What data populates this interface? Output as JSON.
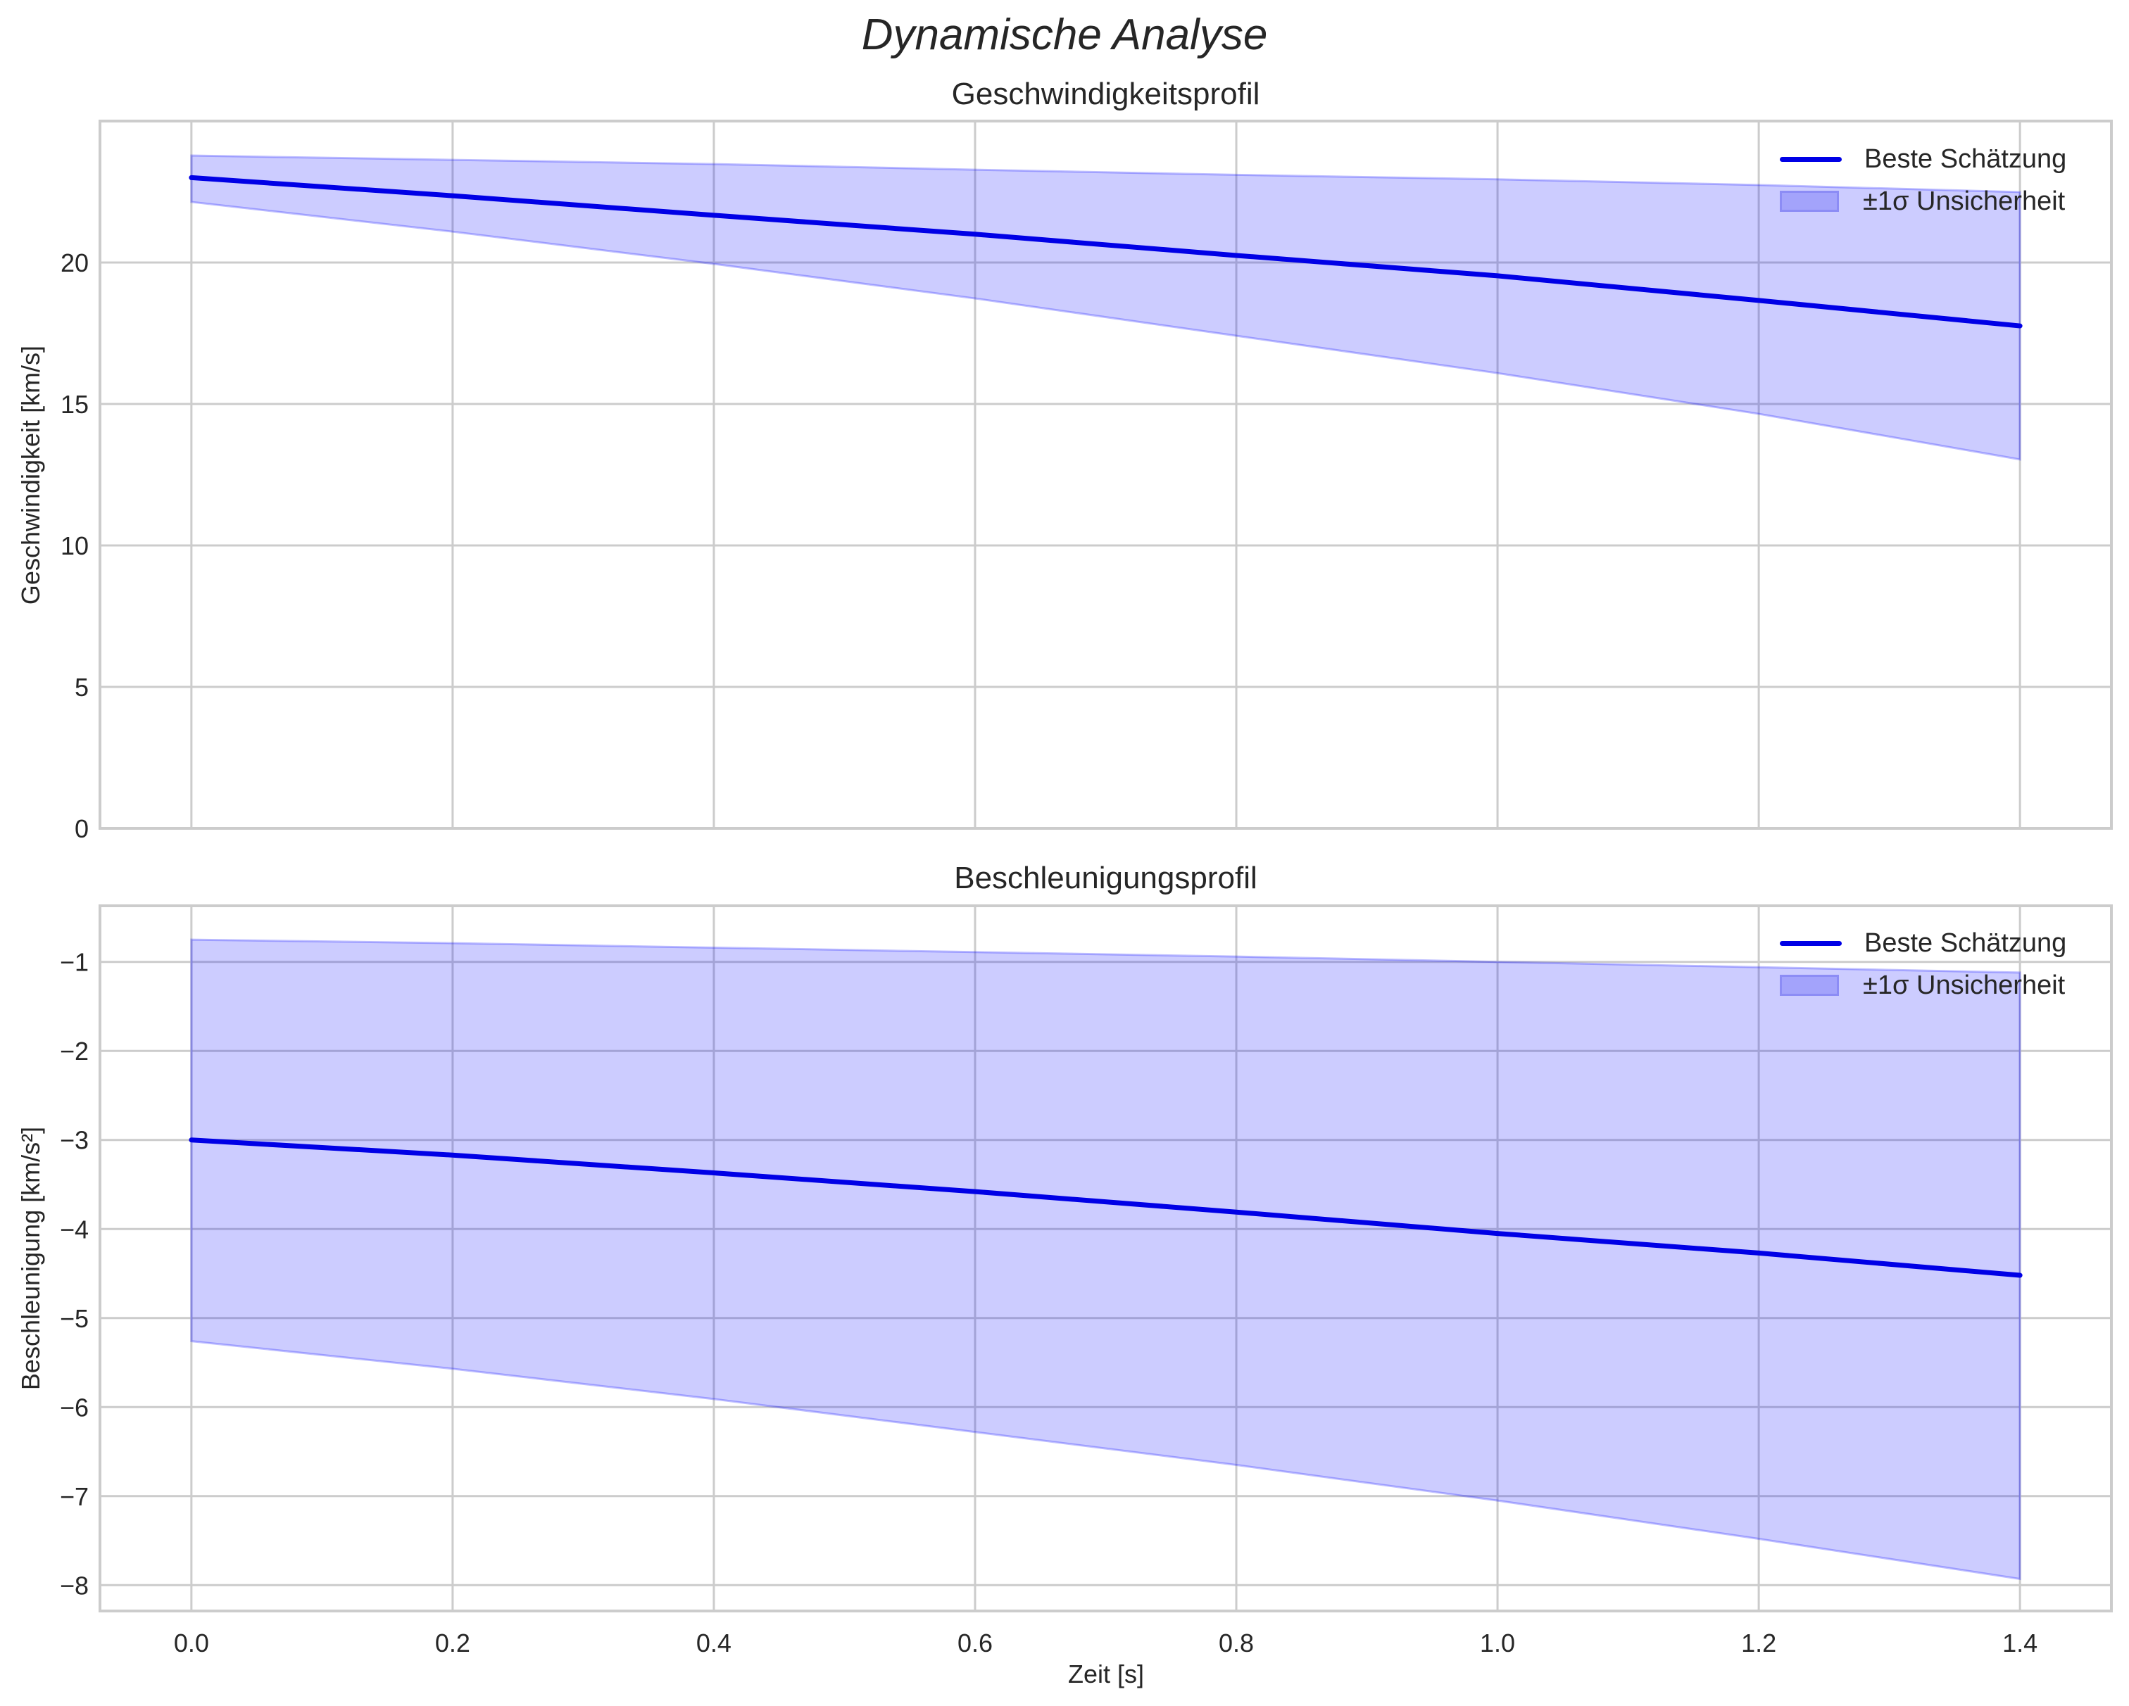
{
  "figure": {
    "suptitle": "Dynamische Analyse",
    "xlabel": "Zeit [s]",
    "colors": {
      "line": "#0000e6",
      "band_fill": "#0000ff",
      "band_fill_opacity": 0.2,
      "band_edge": "#8080f0",
      "legend_patch": "#a3a3fb",
      "legend_patch_edge": "#8c8cf5",
      "grid": "#cccccc",
      "spine": "#cccccc",
      "text": "#262626"
    }
  },
  "legend": {
    "line_label": "Beste Schätzung",
    "band_label": "±1σ Unsicherheit"
  },
  "chart_data": [
    {
      "type": "line",
      "title": "Geschwindigkeitsprofil",
      "xlabel": "",
      "ylabel": "Geschwindigkeit [km/s]",
      "xlim": [
        -0.07,
        1.47
      ],
      "ylim": [
        0,
        25
      ],
      "xticks": [
        0.0,
        0.2,
        0.4,
        0.6,
        0.8,
        1.0,
        1.2,
        1.4
      ],
      "xtick_labels_visible": false,
      "yticks": [
        0,
        5,
        10,
        15,
        20
      ],
      "ytick_labels": [
        "0",
        "5",
        "10",
        "15",
        "20"
      ],
      "grid": true,
      "legend_position": "upper right",
      "x": [
        0.0,
        0.2,
        0.4,
        0.6,
        0.8,
        1.0,
        1.2,
        1.4
      ],
      "series": [
        {
          "name": "Beste Schätzung",
          "kind": "line",
          "values": [
            23.0,
            22.36,
            21.67,
            21.0,
            20.25,
            19.53,
            18.66,
            17.76
          ]
        },
        {
          "name": "±1σ Unsicherheit",
          "kind": "band",
          "upper": [
            23.78,
            23.63,
            23.48,
            23.28,
            23.1,
            22.94,
            22.74,
            22.49
          ],
          "lower": [
            22.14,
            21.09,
            19.95,
            18.73,
            17.41,
            16.09,
            14.65,
            13.04
          ]
        }
      ]
    },
    {
      "type": "line",
      "title": "Beschleunigungsprofil",
      "xlabel": "Zeit [s]",
      "ylabel": "Beschleunigung [km/s²]",
      "xlim": [
        -0.07,
        1.47
      ],
      "ylim": [
        -8.29,
        -0.37
      ],
      "xticks": [
        0.0,
        0.2,
        0.4,
        0.6,
        0.8,
        1.0,
        1.2,
        1.4
      ],
      "xtick_labels": [
        "0.0",
        "0.2",
        "0.4",
        "0.6",
        "0.8",
        "1.0",
        "1.2",
        "1.4"
      ],
      "yticks": [
        -8,
        -7,
        -6,
        -5,
        -4,
        -3,
        -2,
        -1
      ],
      "ytick_labels": [
        "−8",
        "−7",
        "−6",
        "−5",
        "−4",
        "−3",
        "−2",
        "−1"
      ],
      "grid": true,
      "legend_position": "upper right",
      "x": [
        0.0,
        0.2,
        0.4,
        0.6,
        0.8,
        1.0,
        1.2,
        1.4
      ],
      "series": [
        {
          "name": "Beste Schätzung",
          "kind": "line",
          "values": [
            -3.0,
            -3.17,
            -3.37,
            -3.58,
            -3.81,
            -4.05,
            -4.27,
            -4.52
          ]
        },
        {
          "name": "±1σ Unsicherheit",
          "kind": "band",
          "upper": [
            -0.75,
            -0.79,
            -0.84,
            -0.89,
            -0.94,
            -1.0,
            -1.06,
            -1.12
          ],
          "lower": [
            -5.26,
            -5.57,
            -5.91,
            -6.28,
            -6.65,
            -7.05,
            -7.48,
            -7.93
          ]
        }
      ]
    }
  ]
}
